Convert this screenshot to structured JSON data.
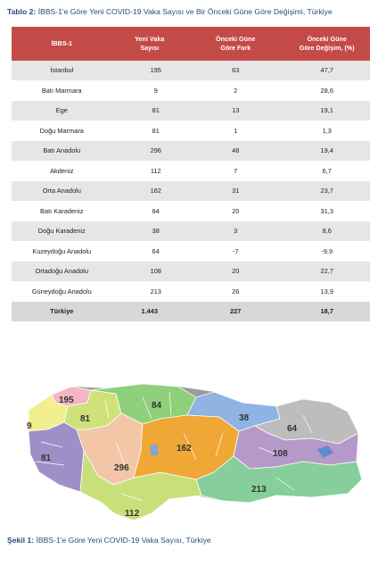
{
  "table_caption": {
    "label": "Tablo 2:",
    "text": " İBBS-1'e Göre Yeni COVID-19 Vaka Sayısı ve Bir Önceki Güne Göre Değişimi, Türkiye"
  },
  "table": {
    "headers": {
      "region": "İBBS-1",
      "new_cases_l1": "Yeni Vaka",
      "new_cases_l2": "Sayısı",
      "diff_l1": "Önceki Güne",
      "diff_l2": "Göre Fark",
      "pct_l1": "Önceki Güne",
      "pct_l2": "Göre Değişim, (%)"
    },
    "rows": [
      {
        "region": "İstanbul",
        "cases": "195",
        "diff": "63",
        "pct": "47,7"
      },
      {
        "region": "Batı Marmara",
        "cases": "9",
        "diff": "2",
        "pct": "28,6"
      },
      {
        "region": "Ege",
        "cases": "81",
        "diff": "13",
        "pct": "19,1"
      },
      {
        "region": "Doğu Marmara",
        "cases": "81",
        "diff": "1",
        "pct": "1,3"
      },
      {
        "region": "Batı Anadolu",
        "cases": "296",
        "diff": "48",
        "pct": "19,4"
      },
      {
        "region": "Akdeniz",
        "cases": "112",
        "diff": "7",
        "pct": "6,7"
      },
      {
        "region": "Orta Anadolu",
        "cases": "162",
        "diff": "31",
        "pct": "23,7"
      },
      {
        "region": "Batı Karadeniz",
        "cases": "84",
        "diff": "20",
        "pct": "31,3"
      },
      {
        "region": "Doğu Karadeniz",
        "cases": "38",
        "diff": "3",
        "pct": "8,6"
      },
      {
        "region": "Kuzeydoğu Anadolu",
        "cases": "64",
        "diff": "-7",
        "pct": "-9,9"
      },
      {
        "region": "Ortadoğu Anadolu",
        "cases": "108",
        "diff": "20",
        "pct": "22,7"
      },
      {
        "region": "Güneydoğu Anadolu",
        "cases": "213",
        "diff": "26",
        "pct": "13,9"
      }
    ],
    "total": {
      "region": "Türkiye",
      "cases": "1.443",
      "diff": "227",
      "pct": "18,7"
    }
  },
  "map": {
    "labels": {
      "istanbul": "195",
      "bati_marmara": "9",
      "ege": "81",
      "dogu_marmara": "81",
      "bati_anadolu": "296",
      "akdeniz": "112",
      "orta_anadolu": "162",
      "bati_karadeniz": "84",
      "dogu_karadeniz": "38",
      "kuzeydogu_anadolu": "64",
      "ortadogu_anadolu": "108",
      "guneydogu_anadolu": "213"
    },
    "colors": {
      "istanbul": "#f4b6c2",
      "bati_marmara": "#f2ef8e",
      "ege": "#9f8fc8",
      "dogu_marmara": "#cfe27a",
      "bati_anadolu": "#f3c6a8",
      "akdeniz": "#c9e07a",
      "orta_anadolu": "#efa735",
      "bati_karadeniz": "#8fd07a",
      "dogu_karadeniz": "#8fb4e3",
      "kuzeydogu_anadolu": "#bdbdbd",
      "ortadogu_anadolu": "#b59ac9",
      "guneydogu_anadolu": "#86cf9a"
    }
  },
  "figure_caption": {
    "label": "Şekil 1:",
    "text": " İBBS-1'e Göre Yeni COVID-19 Vaka Sayısı, Türkiye"
  }
}
